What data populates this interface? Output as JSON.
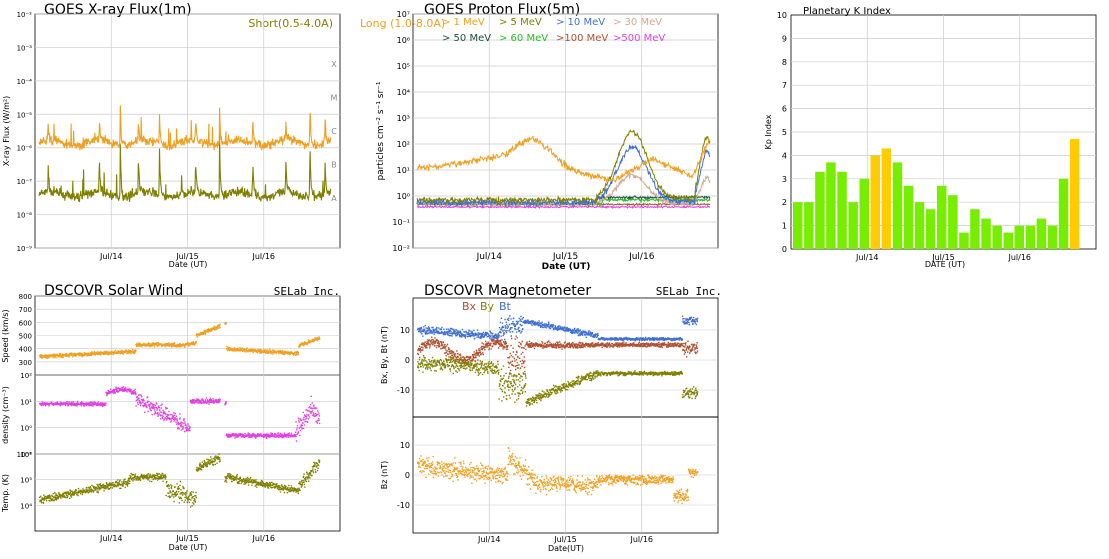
{
  "colors": {
    "orange": "#f0a020",
    "olive": "#808000",
    "blue": "#4070d0",
    "tan": "#d4a890",
    "darkgreen": "#205040",
    "green": "#20c020",
    "brown": "#b05030",
    "magenta": "#e040e0",
    "lime": "#77ee00",
    "yellow": "#ffcc00",
    "grid": "#cccccc"
  },
  "chart_data": [
    {
      "id": "xray",
      "type": "line",
      "title": "GOES X-ray Flux(1m)",
      "ylabel": "X-ray Flux (W/m²)",
      "xlabel": "Date (UT)",
      "x_ticks": [
        "Jul/14",
        "Jul/15",
        "Jul/16"
      ],
      "y_scale": "log",
      "ylim": [
        1e-09,
        0.01
      ],
      "y_ticks": [
        "10⁻⁹",
        "10⁻⁸",
        "10⁻⁷",
        "10⁻⁶",
        "10⁻⁵",
        "10⁻⁴",
        "10⁻³",
        "10⁻²"
      ],
      "flare_classes": [
        "A",
        "B",
        "C",
        "M",
        "X"
      ],
      "legend": [
        {
          "name": "Short(0.5-4.0A)",
          "color": "#808000"
        },
        {
          "name": "Long (1.0-8.0A)",
          "color": "#f0a020"
        }
      ],
      "series": [
        {
          "name": "Short(0.5-4.0A)",
          "color": "#808000",
          "base_log": -7.4,
          "flares": [
            [
              0.03,
              0.9
            ],
            [
              0.2,
              1.1
            ],
            [
              0.27,
              1.6
            ],
            [
              0.33,
              1.2
            ],
            [
              0.4,
              1.6
            ],
            [
              0.52,
              1.2
            ],
            [
              0.6,
              1.8
            ],
            [
              0.71,
              1.2
            ],
            [
              0.82,
              1.0
            ],
            [
              0.9,
              1.9
            ],
            [
              0.95,
              1.1
            ]
          ]
        },
        {
          "name": "Long (1.0-8.0A)",
          "color": "#f0a020",
          "base_log": -5.85,
          "flares": [
            [
              0.03,
              0.5
            ],
            [
              0.2,
              0.7
            ],
            [
              0.27,
              1.3
            ],
            [
              0.33,
              0.8
            ],
            [
              0.4,
              1.0
            ],
            [
              0.52,
              0.7
            ],
            [
              0.6,
              1.2
            ],
            [
              0.71,
              0.8
            ],
            [
              0.82,
              0.6
            ],
            [
              0.9,
              1.4
            ],
            [
              0.95,
              0.7
            ]
          ]
        }
      ]
    },
    {
      "id": "proton",
      "type": "line",
      "title": "GOES Proton Flux(5m)",
      "ylabel": "particles cm⁻² s⁻¹ sr⁻¹",
      "xlabel": "Date (UT)",
      "x_ticks": [
        "Jul/14",
        "Jul/15",
        "Jul/16"
      ],
      "y_scale": "log",
      "ylim": [
        0.01,
        10000000.0
      ],
      "y_ticks": [
        "10⁻²",
        "10⁻¹",
        "10⁰",
        "10¹",
        "10²",
        "10³",
        "10⁴",
        "10⁵",
        "10⁶",
        "10⁷"
      ],
      "legend": [
        {
          "name": "> 1 MeV",
          "color": "#f0a020"
        },
        {
          "name": "> 5 MeV",
          "color": "#808000"
        },
        {
          "name": "> 10 MeV",
          "color": "#4070d0"
        },
        {
          "name": "> 30 MeV",
          "color": "#d4a890"
        },
        {
          "name": "> 50 MeV",
          "color": "#205040"
        },
        {
          "name": "> 60 MeV",
          "color": "#20c020"
        },
        {
          "name": ">100 MeV",
          "color": "#b05030"
        },
        {
          "name": ">500 MeV",
          "color": "#e040e0"
        }
      ]
    },
    {
      "id": "kp",
      "type": "bar",
      "title": "Planetary K Index",
      "ylabel": "Kp Index",
      "xlabel": "DATE (UT)",
      "x_ticks": [
        "Jul/14",
        "Jul/15",
        "Jul/16"
      ],
      "ylim": [
        0,
        10
      ],
      "y_ticks": [
        "0",
        "1",
        "2",
        "3",
        "4",
        "5",
        "6",
        "7",
        "8",
        "9",
        "10"
      ],
      "values": [
        2.0,
        2.0,
        3.3,
        3.7,
        3.3,
        2.0,
        3.0,
        4.0,
        4.3,
        3.7,
        2.7,
        2.0,
        1.7,
        2.7,
        2.3,
        0.7,
        1.7,
        1.3,
        1.0,
        0.7,
        1.0,
        1.0,
        1.3,
        1.0,
        3.0,
        4.7
      ],
      "colors_by_threshold": {
        "below_4": "#77ee00",
        "at_or_above_4": "#ffcc00"
      }
    },
    {
      "id": "solarwind",
      "type": "scatter",
      "title": "DSCOVR Solar Wind",
      "brand": "SELab Inc.",
      "xlabel": "Date (UT)",
      "x_ticks": [
        "Jul/14",
        "Jul/15",
        "Jul/16"
      ],
      "panels": [
        {
          "ylabel": "Speed (km/s)",
          "ylim": [
            200,
            800
          ],
          "y_ticks": [
            "300",
            "400",
            "500",
            "600",
            "700",
            "800"
          ],
          "color": "#f0a020"
        },
        {
          "ylabel": "density (cm⁻³)",
          "y_scale": "log",
          "ylim": [
            0.1,
            100
          ],
          "y_ticks": [
            "10⁻¹",
            "10⁰",
            "10¹",
            "10²"
          ],
          "color": "#e040e0"
        },
        {
          "ylabel": "Temp. (K)",
          "y_scale": "log",
          "ylim": [
            1000.0,
            1000000.0
          ],
          "y_ticks": [
            "10⁴",
            "10⁵",
            "10⁶"
          ],
          "color": "#808000"
        }
      ]
    },
    {
      "id": "mag",
      "type": "scatter",
      "title": "DSCOVR Magnetometer",
      "brand": "SELab Inc.",
      "xlabel": "Date(UT)",
      "x_ticks": [
        "Jul/14",
        "Jul/15",
        "Jul/16"
      ],
      "legend": [
        {
          "name": "Bx",
          "color": "#b05030"
        },
        {
          "name": "By",
          "color": "#808000"
        },
        {
          "name": "Bt",
          "color": "#4070d0"
        }
      ],
      "panels": [
        {
          "ylabel": "Bx, By, Bt (nT)",
          "ylim": [
            -20,
            15
          ],
          "y_ticks": [
            "-10",
            "0",
            "10"
          ]
        },
        {
          "ylabel": "Bz (nT)",
          "ylim": [
            -15,
            15
          ],
          "y_ticks": [
            "-10",
            "0",
            "10"
          ],
          "color": "#f0a020"
        }
      ]
    }
  ]
}
